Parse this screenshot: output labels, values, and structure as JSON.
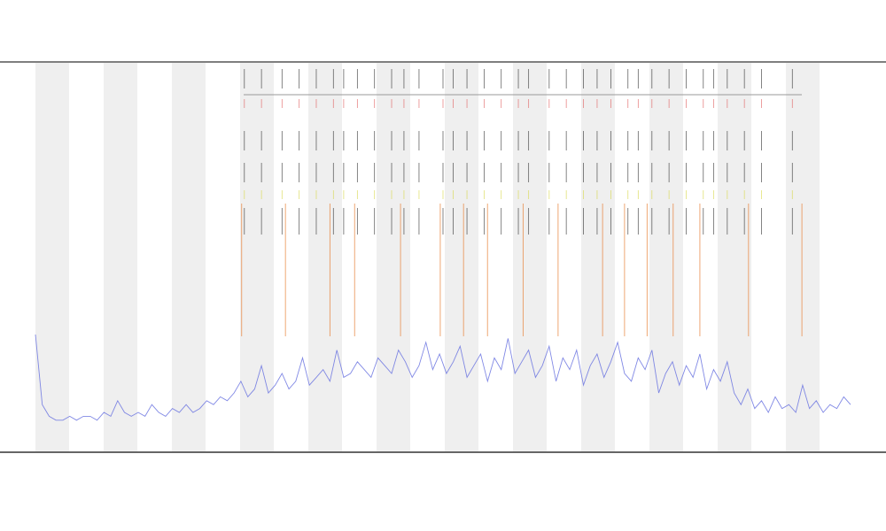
{
  "chart_data": {
    "type": "line",
    "xlim": [
      0,
      119
    ],
    "ylim": [
      0,
      100
    ],
    "series": [
      {
        "color": "#6b74e0",
        "values": [
          30,
          12,
          9,
          8,
          8,
          9,
          8,
          9,
          9,
          8,
          10,
          9,
          13,
          10,
          9,
          10,
          9,
          12,
          10,
          9,
          11,
          10,
          12,
          10,
          11,
          13,
          12,
          14,
          13,
          15,
          18,
          14,
          16,
          22,
          15,
          17,
          20,
          16,
          18,
          24,
          17,
          19,
          21,
          18,
          26,
          19,
          20,
          23,
          21,
          19,
          24,
          22,
          20,
          26,
          23,
          19,
          22,
          28,
          21,
          25,
          20,
          23,
          27,
          19,
          22,
          25,
          18,
          24,
          21,
          29,
          20,
          23,
          26,
          19,
          22,
          27,
          18,
          24,
          21,
          26,
          17,
          22,
          25,
          19,
          23,
          28,
          20,
          18,
          24,
          21,
          26,
          15,
          20,
          23,
          17,
          22,
          19,
          25,
          16,
          21,
          18,
          23,
          15,
          12,
          16,
          11,
          13,
          10,
          14,
          11,
          12,
          10,
          17,
          11,
          13,
          10,
          12,
          11,
          14,
          12
        ]
      }
    ],
    "events": [
      {
        "color": "#e8823a",
        "x": [
          30.1,
          36.5,
          43,
          46.6,
          53.3,
          59.1,
          62.5,
          66,
          71.2,
          76.3,
          82.8,
          86,
          89.3,
          93.1,
          97,
          104.1,
          111.9
        ]
      },
      {
        "color": "#333333",
        "x": [
          30.5,
          33,
          36,
          38.5,
          41,
          43.5,
          45,
          47,
          49.5,
          52,
          53.8,
          56,
          59.5,
          61,
          63,
          65.5,
          68,
          70.5,
          72,
          75,
          77.5,
          80,
          82,
          84,
          86.5,
          88,
          90,
          92.5,
          95,
          97.5,
          99,
          101,
          103.5,
          106,
          110.5
        ]
      }
    ]
  }
}
